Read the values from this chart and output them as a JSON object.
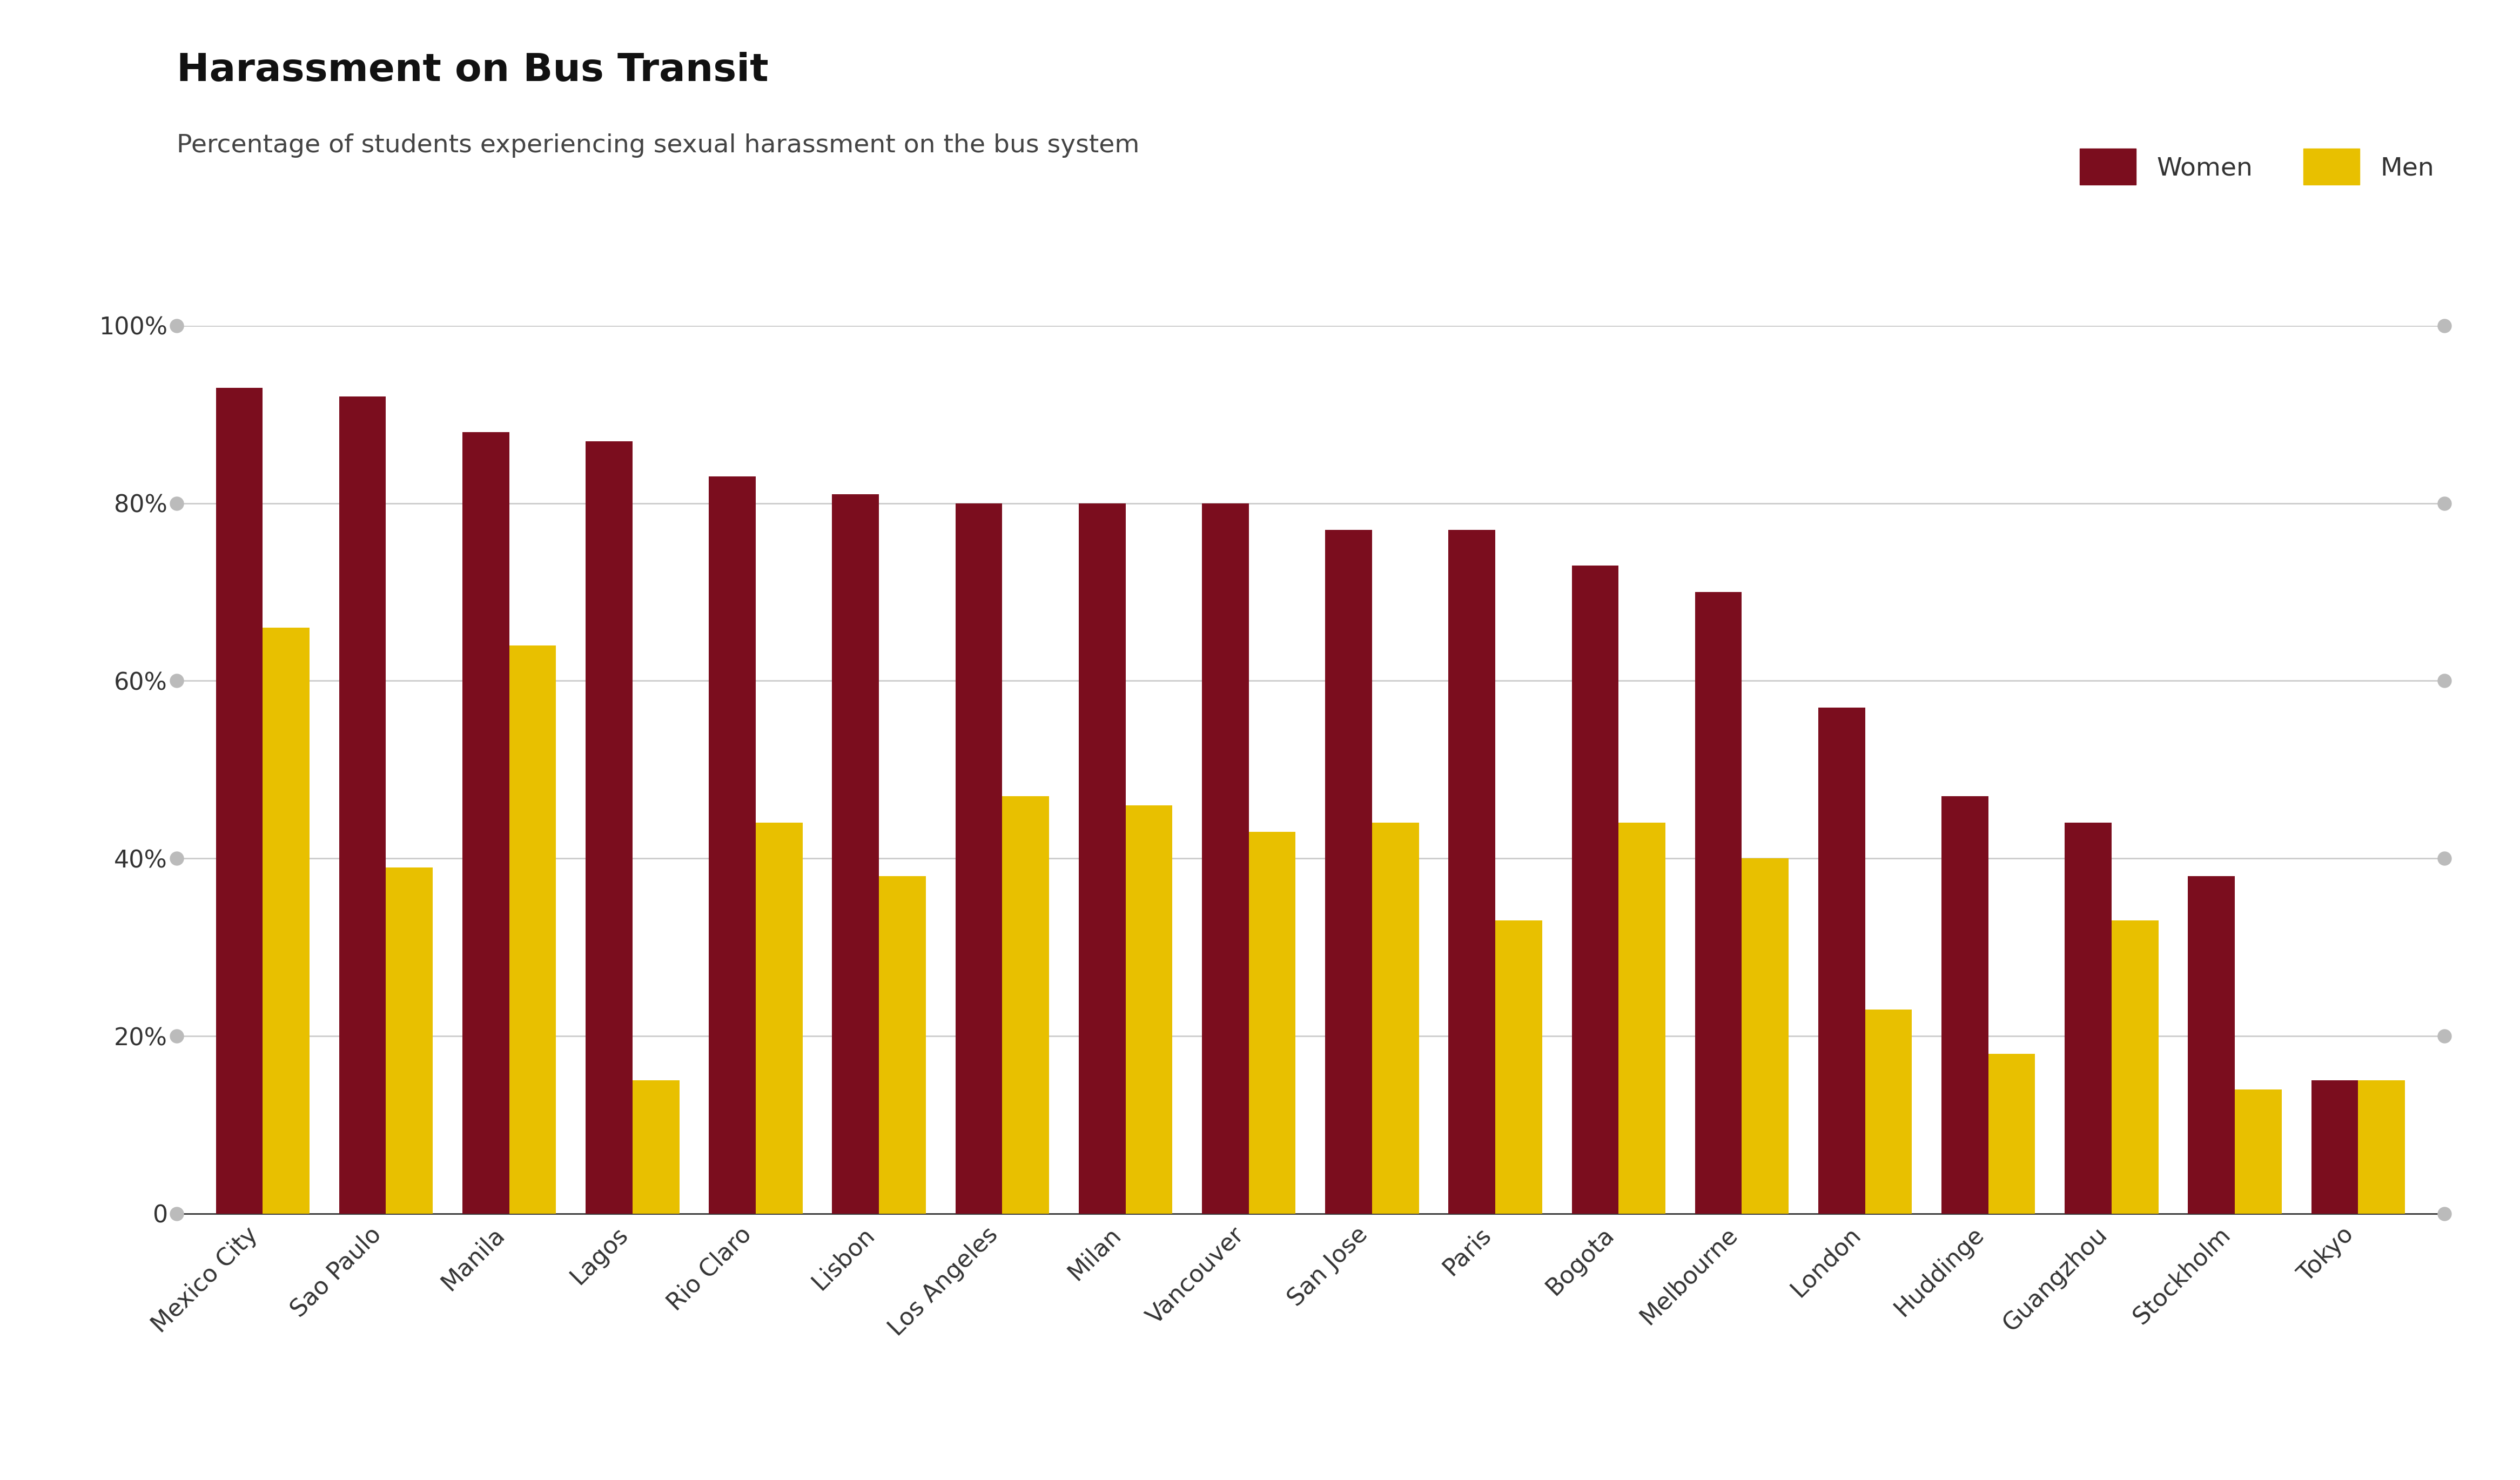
{
  "title": "Harassment on Bus Transit",
  "subtitle": "Percentage of students experiencing sexual harassment on the bus system",
  "categories": [
    "Mexico City",
    "Sao Paulo",
    "Manila",
    "Lagos",
    "Rio Claro",
    "Lisbon",
    "Los Angeles",
    "Milan",
    "Vancouver",
    "San Jose",
    "Paris",
    "Bogota",
    "Melbourne",
    "London",
    "Huddinge",
    "Guangzhou",
    "Stockholm",
    "Tokyo"
  ],
  "women": [
    0.93,
    0.92,
    0.88,
    0.87,
    0.83,
    0.81,
    0.8,
    0.8,
    0.8,
    0.77,
    0.77,
    0.73,
    0.7,
    0.57,
    0.47,
    0.44,
    0.38,
    0.15
  ],
  "men": [
    0.66,
    0.39,
    0.64,
    0.15,
    0.44,
    0.38,
    0.47,
    0.46,
    0.43,
    0.44,
    0.33,
    0.44,
    0.4,
    0.23,
    0.18,
    0.33,
    0.14,
    0.15
  ],
  "women_color": "#7B0D1E",
  "men_color": "#E8C000",
  "background_color": "#FFFFFF",
  "title_fontsize": 52,
  "subtitle_fontsize": 34,
  "axis_tick_fontsize": 32,
  "legend_fontsize": 34,
  "bar_width": 0.38,
  "ylim": [
    0,
    1.0
  ],
  "yticks": [
    0,
    0.2,
    0.4,
    0.6,
    0.8,
    1.0
  ],
  "ytick_labels": [
    "0",
    "20%",
    "40%",
    "60%",
    "80%",
    "100%"
  ],
  "grid_color": "#CCCCCC",
  "dot_color": "#BBBBBB"
}
